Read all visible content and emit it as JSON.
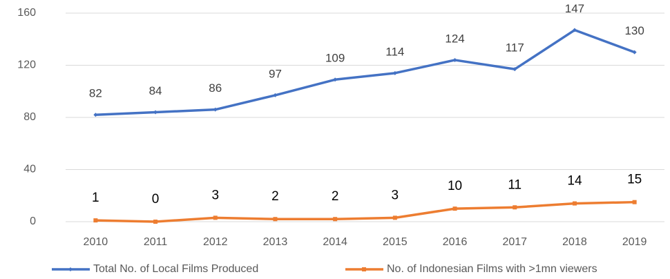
{
  "chart_data": {
    "type": "line",
    "categories": [
      "2010",
      "2011",
      "2012",
      "2013",
      "2014",
      "2015",
      "2016",
      "2017",
      "2018",
      "2019"
    ],
    "series": [
      {
        "name": "Total No. of Local Films Produced",
        "color": "#4472c4",
        "values": [
          82,
          84,
          86,
          97,
          109,
          114,
          124,
          117,
          147,
          130
        ]
      },
      {
        "name": "No. of Indonesian Films with >1mn viewers",
        "color": "#ed7d31",
        "values": [
          1,
          0,
          3,
          2,
          2,
          3,
          10,
          11,
          14,
          15
        ]
      }
    ],
    "ylim": [
      0,
      160
    ],
    "yticks": [
      0,
      40,
      80,
      120,
      160
    ],
    "grid": true,
    "legend": "bottom"
  }
}
